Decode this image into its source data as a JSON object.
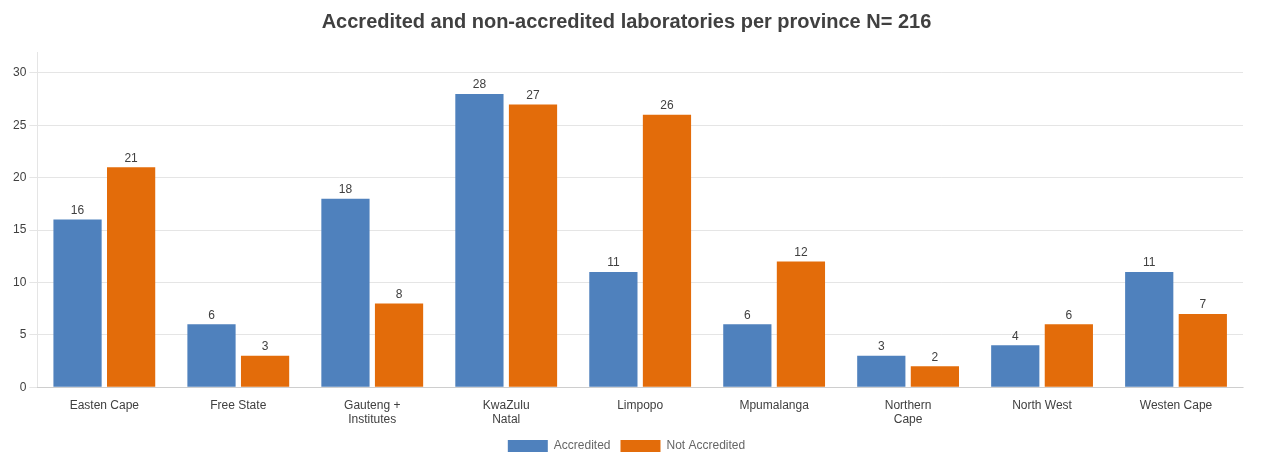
{
  "chart_data": {
    "type": "bar",
    "title": "Accredited and non-accredited laboratories per province N= 216",
    "categories": [
      "Easten Cape",
      "Free State",
      "Gauteng +\nInstitutes",
      "KwaZulu\nNatal",
      "Limpopo",
      "Mpumalanga",
      "Northern\nCape",
      "North West",
      "Westen Cape"
    ],
    "series": [
      {
        "name": "Accredited",
        "color": "#4F81BD",
        "values": [
          16,
          6,
          18,
          28,
          11,
          6,
          3,
          4,
          11
        ]
      },
      {
        "name": "Not Accredited",
        "color": "#E36C0A",
        "values": [
          21,
          3,
          8,
          27,
          26,
          12,
          2,
          6,
          7
        ]
      }
    ],
    "ylim": [
      0,
      32
    ],
    "yticks": [
      0,
      5,
      10,
      15,
      20,
      25,
      30
    ],
    "grid": true,
    "legend": "bottom",
    "data_labels": true
  }
}
